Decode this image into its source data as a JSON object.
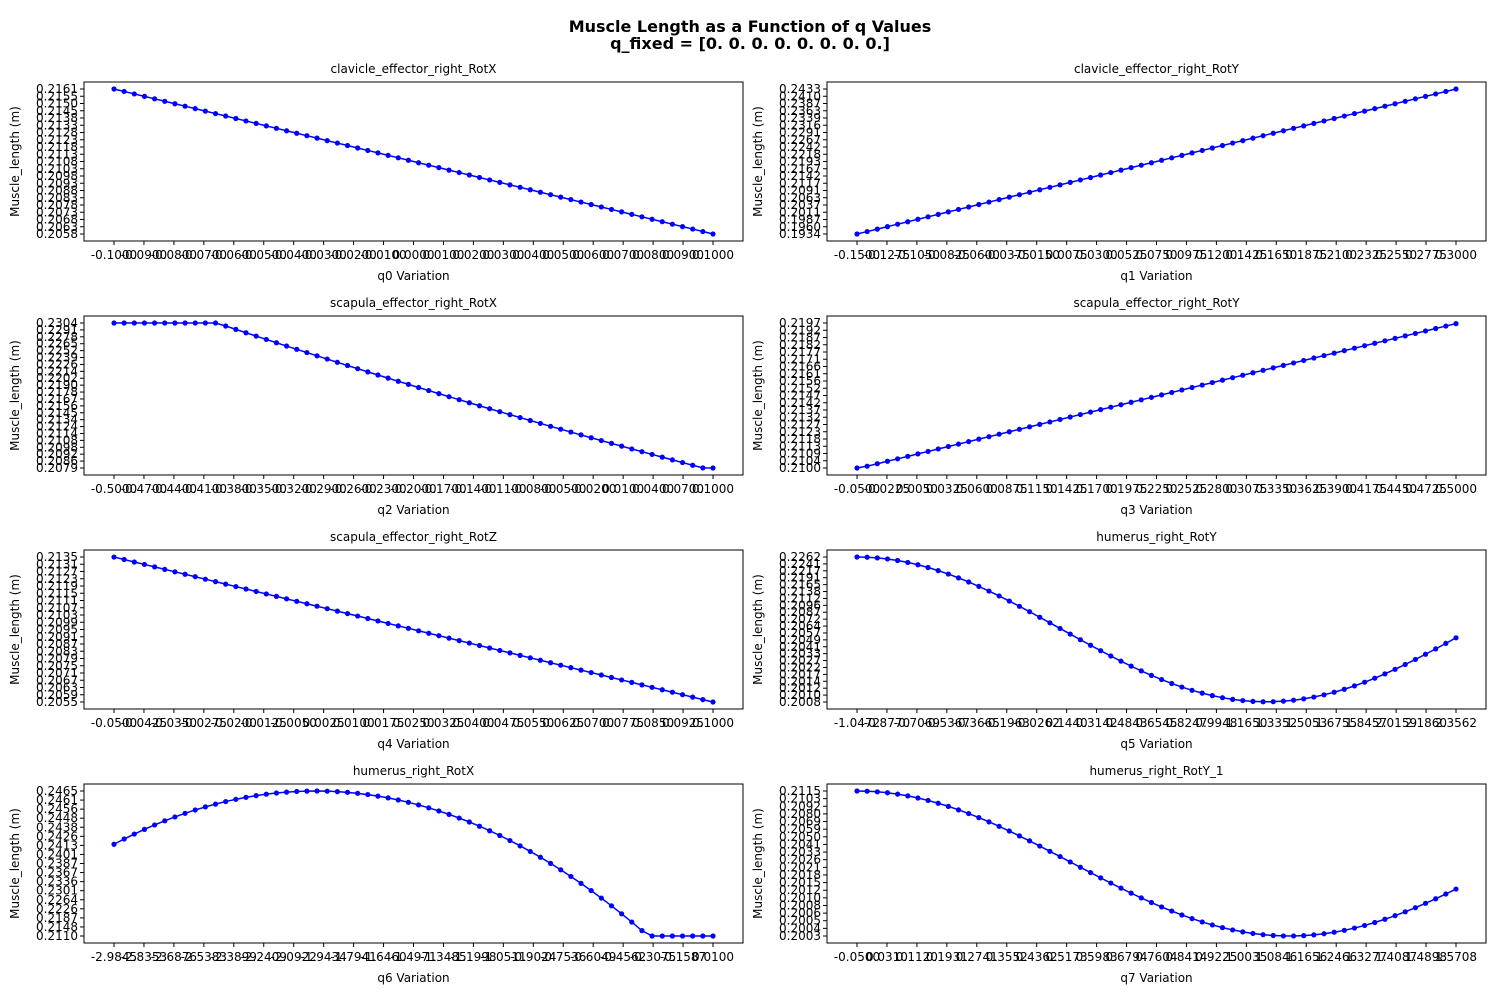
{
  "figure": {
    "title_line1": "Muscle Length as a Function of q Values",
    "title_line2": "q_fixed = [0. 0. 0. 0. 0. 0. 0. 0.]"
  },
  "colors": {
    "series": "#0000ff",
    "axes": "#000000"
  },
  "chart_data": [
    {
      "type": "line",
      "title": "clavicle_effector_right_RotX",
      "xlabel": "q0 Variation",
      "ylabel": "Muscle_length (m)",
      "xlim": [
        -0.1,
        0.1
      ],
      "ylim": [
        0.2058,
        0.2161
      ],
      "curve": {
        "kind": "poly",
        "coef": [
          0.21095,
          -0.0515,
          0
        ]
      },
      "n_points": 60,
      "xticks": [
        "-0.1000",
        "-0.0900",
        "-0.0800",
        "-0.0700",
        "-0.0600",
        "-0.0500",
        "-0.0400",
        "-0.0300",
        "-0.0200",
        "-0.0100",
        "0.0000",
        "0.0100",
        "0.0200",
        "0.0300",
        "0.0400",
        "0.0500",
        "0.0600",
        "0.0700",
        "0.0800",
        "0.0900",
        "0.1000"
      ],
      "yticks": [
        "0.2058",
        "0.2063",
        "0.2068",
        "0.2073",
        "0.2078",
        "0.2083",
        "0.2088",
        "0.2093",
        "0.2098",
        "0.2103",
        "0.2108",
        "0.2113",
        "0.2118",
        "0.2123",
        "0.2128",
        "0.2133",
        "0.2138",
        "0.2145",
        "0.2150",
        "0.2155",
        "0.2161"
      ]
    },
    {
      "type": "line",
      "title": "clavicle_effector_right_RotY",
      "xlabel": "q1 Variation",
      "ylabel": "Muscle_length (m)",
      "xlim": [
        -0.15,
        0.3
      ],
      "ylim": [
        0.1934,
        0.2433
      ],
      "curve": {
        "kind": "poly",
        "coef": [
          0.21003,
          0.1109,
          0
        ]
      },
      "n_points": 60,
      "xticks": [
        "-0.1500",
        "-0.1275",
        "-0.1050",
        "-0.0825",
        "-0.0600",
        "-0.0375",
        "-0.0150",
        "0.0075",
        "0.0300",
        "0.0525",
        "0.0750",
        "0.0975",
        "0.1200",
        "0.1425",
        "0.1650",
        "0.1875",
        "0.2100",
        "0.2325",
        "0.2550",
        "0.2775",
        "0.3000"
      ],
      "yticks": [
        "0.1934",
        "0.1960",
        "0.1987",
        "0.2011",
        "0.2037",
        "0.2063",
        "0.2091",
        "0.2117",
        "0.2142",
        "0.2167",
        "0.2193",
        "0.2218",
        "0.2242",
        "0.2267",
        "0.2291",
        "0.2316",
        "0.2339",
        "0.2363",
        "0.2387",
        "0.2410",
        "0.2433"
      ]
    },
    {
      "type": "line",
      "title": "scapula_effector_right_RotX",
      "xlabel": "q2 Variation",
      "ylabel": "Muscle_length (m)",
      "xlim": [
        -0.5,
        0.1
      ],
      "ylim": [
        0.2079,
        0.2304
      ],
      "curve": {
        "kind": "poly",
        "coef": [
          0.21165,
          -0.0426,
          0.0116
        ]
      },
      "n_points": 60,
      "xticks": [
        "-0.5000",
        "-0.4700",
        "-0.4400",
        "-0.4100",
        "-0.3800",
        "-0.3500",
        "-0.3200",
        "-0.2900",
        "-0.2600",
        "-0.2300",
        "-0.2000",
        "-0.1700",
        "-0.1400",
        "-0.1100",
        "-0.0800",
        "-0.0500",
        "-0.0200",
        "0.0100",
        "0.0400",
        "0.0700",
        "0.1000"
      ],
      "yticks": [
        "0.2079",
        "0.2086",
        "0.2092",
        "0.2098",
        "0.2108",
        "0.2114",
        "0.2124",
        "0.2134",
        "0.2145",
        "0.2156",
        "0.2167",
        "0.2178",
        "0.2190",
        "0.2202",
        "0.2214",
        "0.2226",
        "0.2239",
        "0.2252",
        "0.2265",
        "0.2278",
        "0.2291",
        "0.2304"
      ]
    },
    {
      "type": "line",
      "title": "scapula_effector_right_RotY",
      "xlabel": "q3 Variation",
      "ylabel": "Muscle_length (m)",
      "xlim": [
        -0.05,
        0.5
      ],
      "ylim": [
        0.21,
        0.2197
      ],
      "curve": {
        "kind": "poly",
        "coef": [
          0.21084,
          0.01764,
          0
        ]
      },
      "n_points": 60,
      "xticks": [
        "-0.0500",
        "-0.0225",
        "0.0050",
        "0.0325",
        "0.0600",
        "0.0875",
        "0.1150",
        "0.1425",
        "0.1700",
        "0.1975",
        "0.2250",
        "0.2525",
        "0.2800",
        "0.3075",
        "0.3350",
        "0.3625",
        "0.3900",
        "0.4175",
        "0.4450",
        "0.4725",
        "0.5000"
      ],
      "yticks": [
        "0.2100",
        "0.2104",
        "0.2109",
        "0.2113",
        "0.2118",
        "0.2123",
        "0.2127",
        "0.2132",
        "0.2137",
        "0.2142",
        "0.2147",
        "0.2152",
        "0.2156",
        "0.2161",
        "0.2166",
        "0.2171",
        "0.2177",
        "0.2182",
        "0.2187",
        "0.2192",
        "0.2197"
      ]
    },
    {
      "type": "line",
      "title": "scapula_effector_right_RotZ",
      "xlabel": "q4 Variation",
      "ylabel": "Muscle_length (m)",
      "xlim": [
        -0.05,
        0.1
      ],
      "ylim": [
        0.2055,
        0.2135
      ],
      "curve": {
        "kind": "poly",
        "coef": [
          0.21083,
          -0.05333,
          0
        ]
      },
      "n_points": 60,
      "xticks": [
        "-0.0500",
        "-0.0425",
        "-0.0350",
        "-0.0275",
        "-0.0200",
        "-0.0125",
        "-0.0050",
        "0.0025",
        "0.0100",
        "0.0175",
        "0.0250",
        "0.0325",
        "0.0400",
        "0.0475",
        "0.0550",
        "0.0625",
        "0.0700",
        "0.0775",
        "0.0850",
        "0.0925",
        "0.1000"
      ],
      "yticks": [
        "0.2055",
        "0.2059",
        "0.2063",
        "0.2067",
        "0.2071",
        "0.2075",
        "0.2079",
        "0.2083",
        "0.2087",
        "0.2091",
        "0.2095",
        "0.2099",
        "0.2103",
        "0.2107",
        "0.2111",
        "0.2115",
        "0.2119",
        "0.2123",
        "0.2127",
        "0.2131",
        "0.2135"
      ]
    },
    {
      "type": "line",
      "title": "humerus_right_RotY",
      "xlabel": "q5 Variation",
      "ylabel": "Muscle_length (m)",
      "xlim": [
        -1.0472,
        2.3562
      ],
      "ylim": [
        0.2008,
        0.2262
      ],
      "curve": {
        "kind": "cos",
        "mid": 0.21352,
        "amp": 0.01268,
        "x0": -1.0472,
        "xmin": 1.2793
      },
      "n_points": 60,
      "xticks": [
        "-1.0472",
        "-0.8770",
        "-0.7069",
        "-0.5367",
        "-0.3665",
        "-0.1963",
        "-0.0262",
        "0.1440",
        "0.3142",
        "0.4843",
        "0.6545",
        "0.8247",
        "0.9948",
        "1.1650",
        "1.3352",
        "1.5053",
        "1.6755",
        "1.8457",
        "2.0159",
        "2.1860",
        "2.3562"
      ],
      "yticks": [
        "0.2008",
        "0.2010",
        "0.2012",
        "0.2014",
        "0.2017",
        "0.2022",
        "0.2027",
        "0.2033",
        "0.2041",
        "0.2049",
        "0.2057",
        "0.2064",
        "0.2072",
        "0.2087",
        "0.2096",
        "0.2112",
        "0.2138",
        "0.2165",
        "0.2191",
        "0.2217",
        "0.2241",
        "0.2262"
      ]
    },
    {
      "type": "line",
      "title": "humerus_right_RotX",
      "xlabel": "q6 Variation",
      "ylabel": "Muscle_length (m)",
      "xlim": [
        -2.9845,
        0.01
      ],
      "ylim": [
        0.211,
        0.2465
      ],
      "curve": {
        "kind": "quad",
        "base": 0.2465,
        "k": 0.01284,
        "xmax": -1.977
      },
      "n_points": 60,
      "xticks": [
        "-2.9845",
        "-2.8353",
        "-2.6876",
        "-2.5383",
        "-2.3899",
        "-2.2409",
        "-2.0922",
        "-1.9434",
        "-1.7941",
        "-1.6460",
        "-1.4971",
        "-1.3485",
        "-1.1998",
        "-1.0511",
        "-0.9024",
        "-0.7536",
        "-0.6049",
        "-0.4562",
        "-0.3075",
        "-0.1587",
        "0.0100"
      ],
      "yticks": [
        "0.2110",
        "0.2148",
        "0.2187",
        "0.2226",
        "0.2264",
        "0.2301",
        "0.2336",
        "0.2367",
        "0.2387",
        "0.2401",
        "0.2413",
        "0.2426",
        "0.2438",
        "0.2448",
        "0.2456",
        "0.2461",
        "0.2465"
      ]
    },
    {
      "type": "line",
      "title": "humerus_right_RotY_1",
      "xlabel": "q7 Variation",
      "ylabel": "Muscle_length (m)",
      "xlim": [
        -0.05,
        1.5708
      ],
      "ylim": [
        0.2003,
        0.2115
      ],
      "curve": {
        "kind": "cos",
        "mid": 0.2059,
        "amp": 0.0056,
        "x0": -0.05,
        "xmin": 1.12
      },
      "n_points": 60,
      "xticks": [
        "-0.0500",
        "0.0310",
        "0.1120",
        "0.1931",
        "0.2741",
        "0.3552",
        "0.4362",
        "0.5173",
        "0.5983",
        "0.6794",
        "0.7604",
        "0.8414",
        "0.9225",
        "1.0035",
        "1.0846",
        "1.1656",
        "1.2466",
        "1.3277",
        "1.4087",
        "1.4898",
        "1.5708"
      ],
      "yticks": [
        "0.2003",
        "0.2004",
        "0.2005",
        "0.2006",
        "0.2008",
        "0.2010",
        "0.2012",
        "0.2015",
        "0.2018",
        "0.2021",
        "0.2026",
        "0.2033",
        "0.2041",
        "0.2050",
        "0.2059",
        "0.2069",
        "0.2080",
        "0.2092",
        "0.2103",
        "0.2115"
      ]
    }
  ]
}
